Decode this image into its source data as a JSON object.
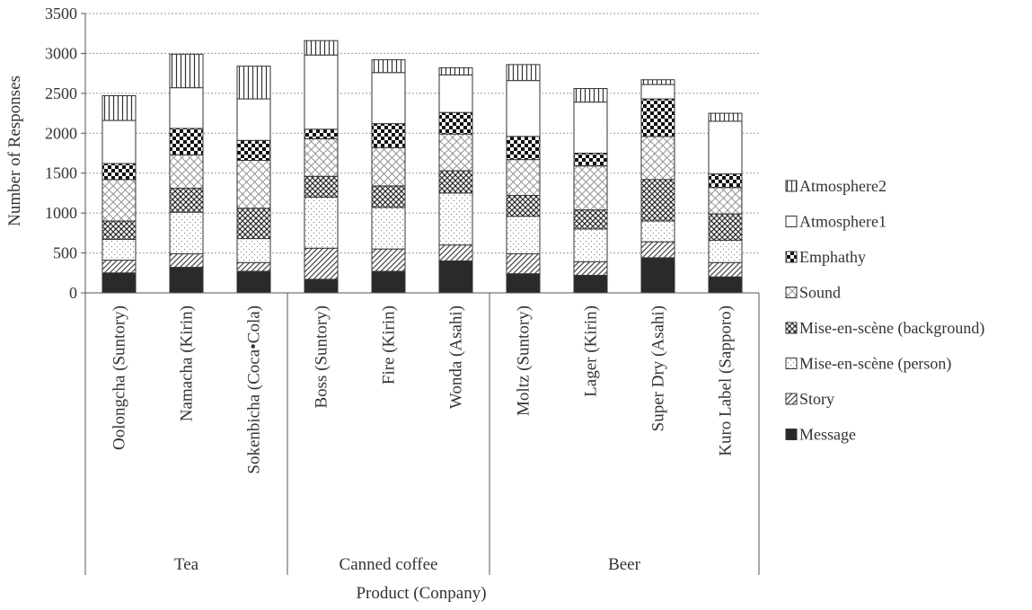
{
  "chart_data": {
    "type": "bar",
    "stacked": true,
    "title": "",
    "xlabel": "Product (Conpany)",
    "ylabel": "Number of Responses",
    "ylim": [
      0,
      3500
    ],
    "yticks": [
      "0",
      "500",
      "1000",
      "1500",
      "2000",
      "2500",
      "3000",
      "3500"
    ],
    "grid": true,
    "legend_position": "right",
    "categories": [
      "Oolongcha (Suntory)",
      "Namacha (Kirin)",
      "Sokenbicha (Coca•Cola)",
      "Boss (Suntory)",
      "Fire (Kirin)",
      "Wonda (Asahi)",
      "Moltz (Suntory)",
      "Lager (Kirin)",
      "Super Dry (Asahi)",
      "Kuro Label (Sapporo)"
    ],
    "groups": [
      {
        "label": "Tea",
        "count": 3
      },
      {
        "label": "Canned coffee",
        "count": 3
      },
      {
        "label": "Beer",
        "count": 4
      }
    ],
    "series": [
      {
        "name": "Message",
        "pattern": "solid",
        "values": [
          250,
          320,
          270,
          170,
          270,
          400,
          240,
          220,
          440,
          200
        ]
      },
      {
        "name": "Story",
        "pattern": "diag",
        "values": [
          160,
          170,
          110,
          390,
          280,
          200,
          250,
          170,
          200,
          180
        ]
      },
      {
        "name": "Mise-en-scène (person)",
        "pattern": "dots",
        "values": [
          260,
          520,
          300,
          640,
          520,
          650,
          470,
          410,
          260,
          280
        ]
      },
      {
        "name": "Mise-en-scène (background)",
        "pattern": "dense",
        "values": [
          230,
          300,
          380,
          260,
          270,
          280,
          260,
          240,
          520,
          330
        ]
      },
      {
        "name": "Sound",
        "pattern": "cross",
        "values": [
          520,
          420,
          600,
          470,
          480,
          460,
          450,
          550,
          540,
          330
        ]
      },
      {
        "name": "Emphathy",
        "pattern": "checker",
        "values": [
          200,
          330,
          250,
          120,
          300,
          270,
          290,
          160,
          470,
          170
        ]
      },
      {
        "name": "Atmosphere1",
        "pattern": "blank",
        "values": [
          540,
          510,
          520,
          930,
          640,
          470,
          700,
          640,
          180,
          660
        ]
      },
      {
        "name": "Atmosphere2",
        "pattern": "vlines",
        "values": [
          310,
          420,
          410,
          180,
          160,
          90,
          200,
          170,
          60,
          100
        ]
      }
    ]
  },
  "colors": {
    "ink": "#222222",
    "grid": "#9a9a9a",
    "axis": "#555555",
    "text": "#333333"
  }
}
